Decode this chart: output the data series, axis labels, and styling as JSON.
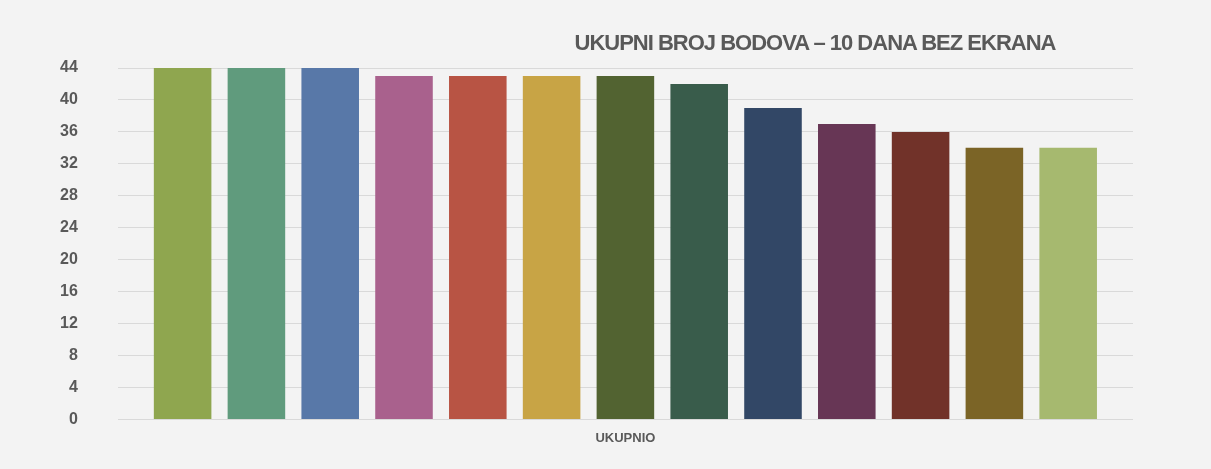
{
  "chart_data": {
    "type": "bar",
    "title": "UKUPNI BROJ BODOVA – 10 DANA BEZ EKRANA",
    "categories": [
      "UKUPNIO"
    ],
    "series": [
      {
        "color": "#8fa64f",
        "values": [
          44
        ]
      },
      {
        "color": "#609b7d",
        "values": [
          44
        ]
      },
      {
        "color": "#5878a8",
        "values": [
          44
        ]
      },
      {
        "color": "#a9618d",
        "values": [
          43
        ]
      },
      {
        "color": "#b85444",
        "values": [
          43
        ]
      },
      {
        "color": "#c8a445",
        "values": [
          43
        ]
      },
      {
        "color": "#526331",
        "values": [
          43
        ]
      },
      {
        "color": "#395c4b",
        "values": [
          42
        ]
      },
      {
        "color": "#324766",
        "values": [
          39
        ]
      },
      {
        "color": "#673655",
        "values": [
          37
        ]
      },
      {
        "color": "#713229",
        "values": [
          36
        ]
      },
      {
        "color": "#7b6426",
        "values": [
          34
        ]
      },
      {
        "color": "#a6b96f",
        "values": [
          34
        ]
      }
    ],
    "ylim": [
      0,
      44
    ],
    "yticks": [
      0,
      4,
      8,
      12,
      16,
      20,
      24,
      28,
      32,
      36,
      40,
      44
    ],
    "grid": "y",
    "legend": false
  }
}
